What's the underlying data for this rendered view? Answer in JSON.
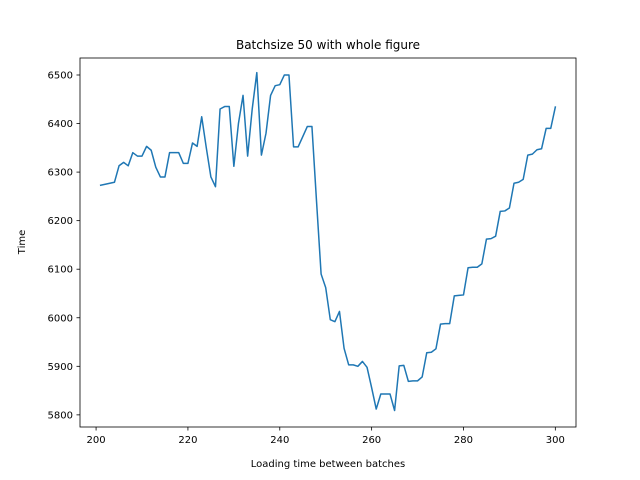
{
  "chart_data": {
    "type": "line",
    "title": "Batchsize 50 with whole figure",
    "xlabel": "Loading time between batches",
    "ylabel": "Time",
    "xlim": [
      196.5,
      304.5
    ],
    "ylim": [
      5775,
      6535
    ],
    "xticks": [
      200,
      220,
      240,
      260,
      280,
      300
    ],
    "yticks": [
      5800,
      5900,
      6000,
      6100,
      6200,
      6300,
      6400,
      6500
    ],
    "grid": false,
    "legend": "none",
    "series": [
      {
        "color": "#1f77b4",
        "x": [
          201,
          202,
          203,
          204,
          205,
          206,
          207,
          208,
          209,
          210,
          211,
          212,
          213,
          214,
          215,
          216,
          217,
          218,
          219,
          220,
          221,
          222,
          223,
          224,
          225,
          226,
          227,
          228,
          229,
          230,
          231,
          232,
          233,
          234,
          235,
          236,
          237,
          238,
          239,
          240,
          241,
          242,
          243,
          244,
          245,
          246,
          247,
          248,
          249,
          250,
          251,
          252,
          253,
          254,
          255,
          256,
          257,
          258,
          259,
          260,
          261,
          262,
          263,
          264,
          265,
          266,
          267,
          268,
          269,
          270,
          271,
          272,
          273,
          274,
          275,
          276,
          277,
          278,
          279,
          280,
          281,
          282,
          283,
          284,
          285,
          286,
          287,
          288,
          289,
          290,
          291,
          292,
          293,
          294,
          295,
          296,
          297,
          298,
          299,
          300
        ],
        "y": [
          6273,
          6275,
          6277,
          6279,
          6313,
          6320,
          6313,
          6340,
          6333,
          6333,
          6353,
          6345,
          6310,
          6290,
          6290,
          6340,
          6340,
          6340,
          6318,
          6318,
          6360,
          6353,
          6414,
          6350,
          6290,
          6270,
          6430,
          6435,
          6435,
          6312,
          6400,
          6458,
          6333,
          6430,
          6505,
          6335,
          6380,
          6458,
          6478,
          6480,
          6500,
          6500,
          6352,
          6352,
          6373,
          6394,
          6394,
          6240,
          6090,
          6062,
          5996,
          5992,
          6013,
          5937,
          5903,
          5903,
          5900,
          5910,
          5898,
          5856,
          5812,
          5843,
          5843,
          5843,
          5809,
          5901,
          5902,
          5869,
          5870,
          5870,
          5878,
          5928,
          5929,
          5936,
          5987,
          5988,
          5988,
          6045,
          6046,
          6047,
          6103,
          6104,
          6104,
          6111,
          6162,
          6163,
          6168,
          6219,
          6220,
          6226,
          6277,
          6279,
          6285,
          6335,
          6337,
          6346,
          6348,
          6390,
          6390,
          6434
        ]
      }
    ]
  }
}
